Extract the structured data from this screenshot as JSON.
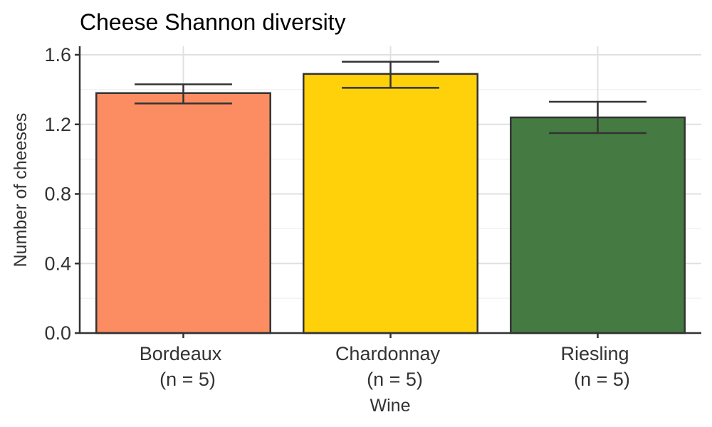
{
  "chart_data": {
    "type": "bar",
    "title": "Cheese Shannon diversity",
    "xlabel": "Wine",
    "ylabel": "Number of cheeses",
    "categories": [
      "Bordeaux",
      "Chardonnay",
      "Riesling"
    ],
    "category_sublabels": [
      "(n = 5)",
      "(n = 5)",
      "(n = 5)"
    ],
    "values": [
      1.38,
      1.49,
      1.24
    ],
    "error_low": [
      1.32,
      1.41,
      1.15
    ],
    "error_high": [
      1.43,
      1.56,
      1.33
    ],
    "colors": [
      "#FC8D62",
      "#FFD10A",
      "#457B43"
    ],
    "ylim": [
      0,
      1.6
    ],
    "yticks": [
      0.0,
      0.4,
      0.8,
      1.2,
      1.6
    ],
    "ytick_labels": [
      "0.0",
      "0.4",
      "0.8",
      "1.2",
      "1.6"
    ],
    "grid": true,
    "legend": false
  }
}
